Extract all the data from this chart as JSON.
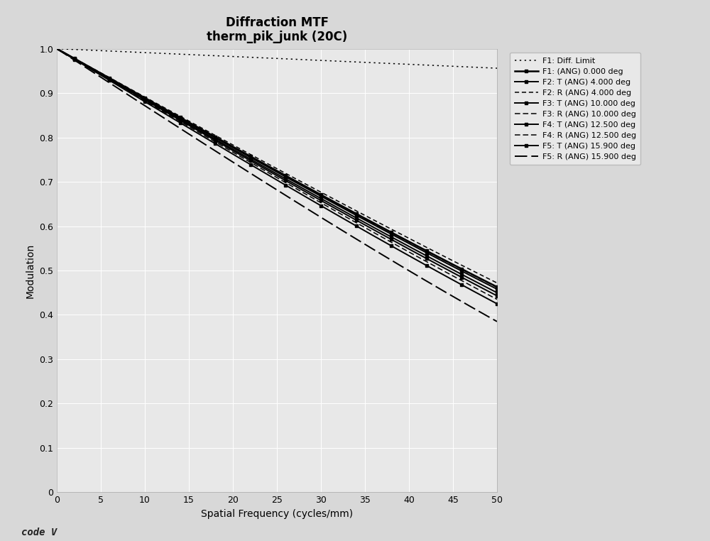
{
  "title_line1": "Diffraction MTF",
  "title_line2": "therm_pik_junk (20C)",
  "xlabel": "Spatial Frequency (cycles/mm)",
  "ylabel": "Modulation",
  "xlim": [
    0,
    50
  ],
  "ylim": [
    0,
    1.0
  ],
  "xticks": [
    0,
    5,
    10,
    15,
    20,
    25,
    30,
    35,
    40,
    45,
    50
  ],
  "yticks": [
    0,
    0.1,
    0.2,
    0.3,
    0.4,
    0.5,
    0.6,
    0.7,
    0.8,
    0.9,
    1.0
  ],
  "fig_facecolor": "#d8d8d8",
  "plot_facecolor": "#e8e8e8",
  "grid_color": "#ffffff",
  "legend_facecolor": "#e8e8e8",
  "curve_color": "#000000",
  "lw_thick": 1.8,
  "lw_med": 1.4,
  "lw_thin": 1.1,
  "legend_fontsize": 8.0,
  "title_fontsize": 12,
  "axis_label_fontsize": 10,
  "tick_fontsize": 9,
  "watermark": "code V"
}
